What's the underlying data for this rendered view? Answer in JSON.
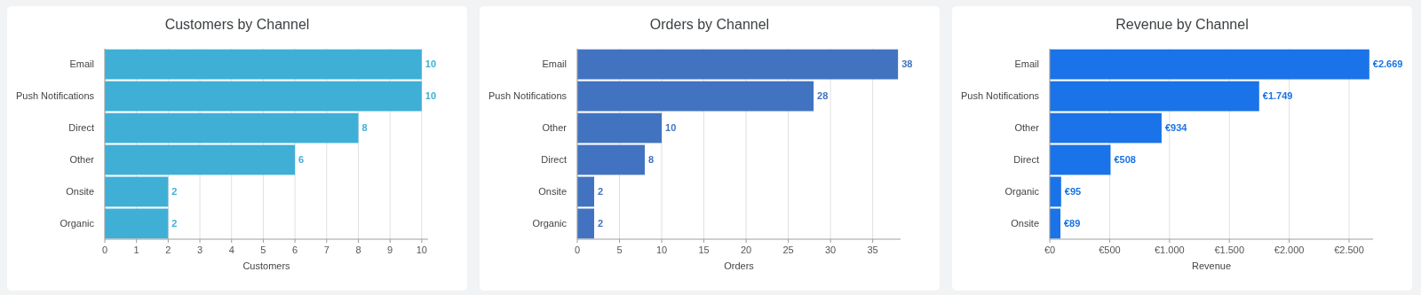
{
  "chart_data": [
    {
      "type": "bar",
      "orientation": "horizontal",
      "title": "Customers by Channel",
      "xlabel": "Customers",
      "categories": [
        "Email",
        "Push Notifications",
        "Direct",
        "Other",
        "Onsite",
        "Organic"
      ],
      "values": [
        10,
        10,
        8,
        6,
        2,
        2
      ],
      "color": "#3fafd6",
      "xlim": [
        0,
        10.2
      ],
      "xticks": [
        0,
        1,
        2,
        3,
        4,
        5,
        6,
        7,
        8,
        9,
        10
      ],
      "grid": "x",
      "data_labels": true
    },
    {
      "type": "bar",
      "orientation": "horizontal",
      "title": "Orders by Channel",
      "xlabel": "Orders",
      "categories": [
        "Email",
        "Push Notifications",
        "Other",
        "Direct",
        "Onsite",
        "Organic"
      ],
      "values": [
        38,
        28,
        10,
        8,
        2,
        2
      ],
      "color": "#4273c0",
      "xlim": [
        0,
        38.3
      ],
      "xticks": [
        0,
        5,
        10,
        15,
        20,
        25,
        30,
        35
      ],
      "grid": "x",
      "data_labels": true
    },
    {
      "type": "bar",
      "orientation": "horizontal",
      "title": "Revenue by Channel",
      "xlabel": "Revenue",
      "categories": [
        "Email",
        "Push Notifications",
        "Other",
        "Direct",
        "Organic",
        "Onsite"
      ],
      "values": [
        2669,
        1749,
        934,
        508,
        95,
        89
      ],
      "color": "#1a73e8",
      "xlim": [
        0,
        2700
      ],
      "xticks": [
        {
          "value": 0,
          "label": "€0"
        },
        {
          "value": 500,
          "label": "€500"
        },
        {
          "value": 1000,
          "label": "€1.000"
        },
        {
          "value": 1500,
          "label": "€1.500"
        },
        {
          "value": 2000,
          "label": "€2.000"
        },
        {
          "value": 2500,
          "label": "€2.500"
        }
      ],
      "grid": "x",
      "value_labels": [
        "€2.669",
        "€1.749",
        "€934",
        "€508",
        "€95",
        "€89"
      ]
    }
  ]
}
